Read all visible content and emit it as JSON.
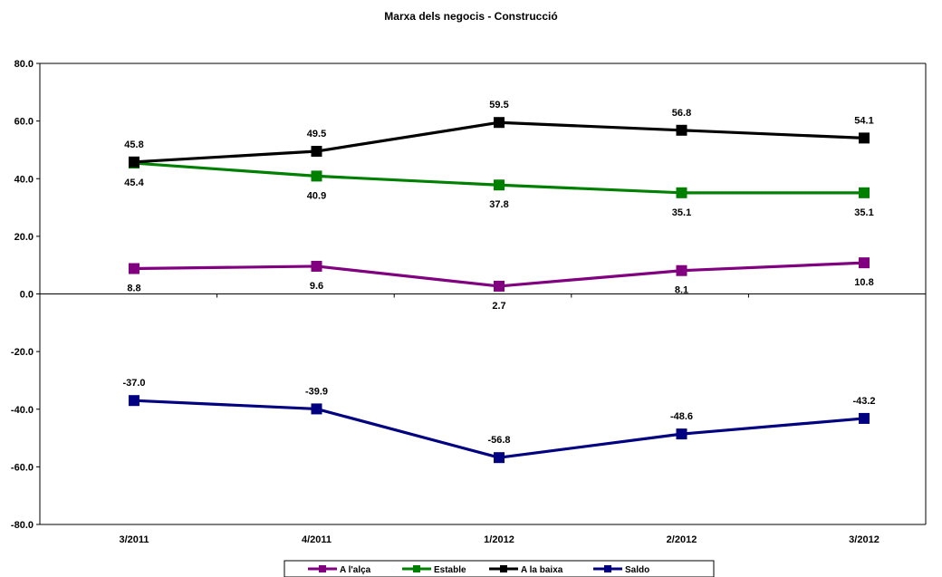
{
  "chart_data": {
    "type": "line",
    "title": "Marxa dels negocis - Construcció",
    "xlabel": "",
    "ylabel": "",
    "categories": [
      "3/2011",
      "4/2011",
      "1/2012",
      "2/2012",
      "3/2012"
    ],
    "ylim": [
      -80,
      80
    ],
    "y_ticks": [
      80,
      60,
      40,
      20,
      0,
      -20,
      -40,
      -60,
      -80
    ],
    "y_tick_labels": [
      "80.0",
      "60.0",
      "40.0",
      "20.0",
      "0.0",
      "-20.0",
      "-40.0",
      "-60.0",
      "-80.0"
    ],
    "grid": false,
    "legend_position": "bottom",
    "series": [
      {
        "name": "A l'alça",
        "color": "#800080",
        "values": [
          8.8,
          9.6,
          2.7,
          8.1,
          10.8
        ],
        "labels": [
          "8.8",
          "9.6",
          "2.7",
          "8.1",
          "10.8"
        ],
        "label_pos": "below"
      },
      {
        "name": "Estable",
        "color": "#008000",
        "values": [
          45.4,
          40.9,
          37.8,
          35.1,
          35.1
        ],
        "labels": [
          "45.4",
          "40.9",
          "37.8",
          "35.1",
          "35.1"
        ],
        "label_pos": "below"
      },
      {
        "name": "A la baixa",
        "color": "#000000",
        "values": [
          45.8,
          49.5,
          59.5,
          56.8,
          54.1
        ],
        "labels": [
          "45.8",
          "49.5",
          "59.5",
          "56.8",
          "54.1"
        ],
        "label_pos": "above"
      },
      {
        "name": "Saldo",
        "color": "#000080",
        "values": [
          -37.0,
          -39.9,
          -56.8,
          -48.6,
          -43.2
        ],
        "labels": [
          "-37.0",
          "-39.9",
          "-56.8",
          "-48.6",
          "-43.2"
        ],
        "label_pos": "above"
      }
    ]
  }
}
